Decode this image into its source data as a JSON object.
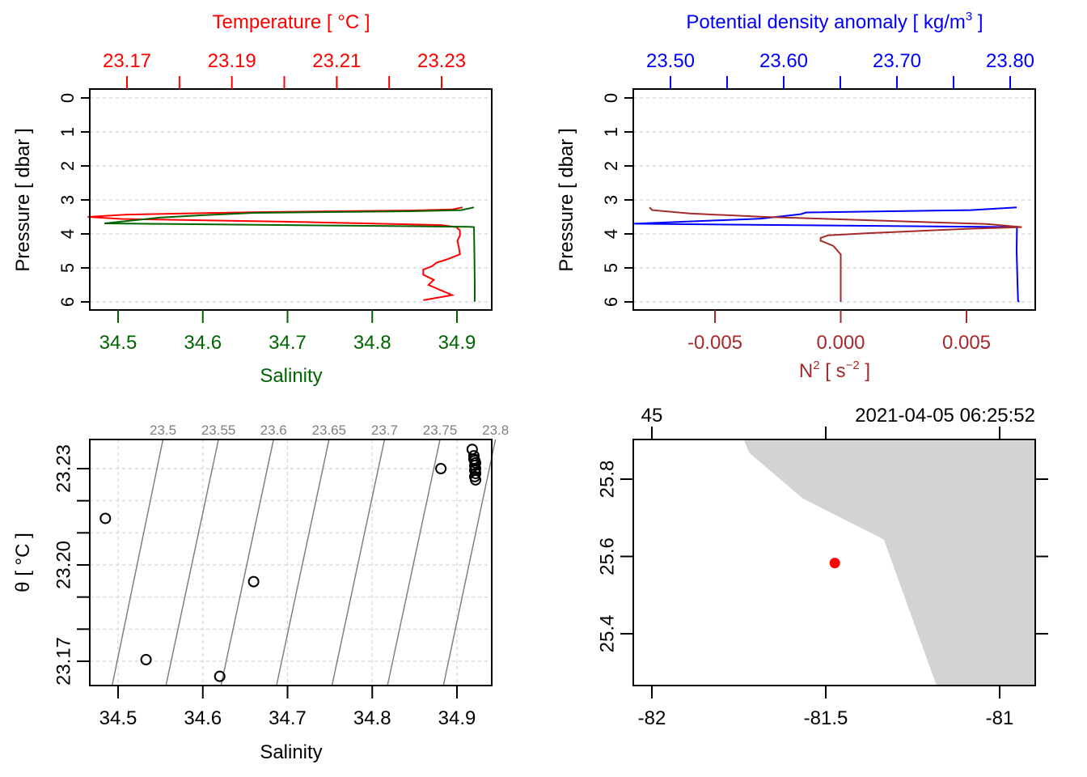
{
  "chart_data": [
    {
      "id": "ts_profile",
      "type": "line",
      "ylabel": "Pressure [ dbar ]",
      "ylim": [
        0,
        6
      ],
      "y_reversed": true,
      "yticks": [
        0,
        1,
        2,
        3,
        4,
        5,
        6
      ],
      "grid": "horizontal dashed",
      "top_axis": {
        "title": "Temperature [ °C ]",
        "color": "#ff0000",
        "ticks": [
          23.17,
          23.18,
          23.19,
          23.2,
          23.21,
          23.22,
          23.23
        ],
        "tick_labels": [
          "23.17",
          "23.19",
          "23.21",
          "23.23"
        ],
        "labeled_ticks": [
          23.17,
          23.19,
          23.21,
          23.23
        ]
      },
      "bottom_axis": {
        "title": "Salinity",
        "color": "#006400",
        "ticks": [
          34.5,
          34.6,
          34.7,
          34.8,
          34.9
        ],
        "tick_labels": [
          "34.5",
          "34.6",
          "34.7",
          "34.8",
          "34.9"
        ]
      },
      "series": [
        {
          "name": "Temperature",
          "color": "#ff0000",
          "axis": "top",
          "points": [
            [
              23.234,
              3.22
            ],
            [
              23.232,
              3.28
            ],
            [
              23.225,
              3.31
            ],
            [
              23.195,
              3.36
            ],
            [
              23.17,
              3.43
            ],
            [
              23.1625,
              3.5
            ],
            [
              23.169,
              3.56
            ],
            [
              23.2,
              3.64
            ],
            [
              23.23,
              3.74
            ],
            [
              23.2328,
              3.8
            ],
            [
              23.2335,
              3.9
            ],
            [
              23.2335,
              4.05
            ],
            [
              23.233,
              4.2
            ],
            [
              23.2333,
              4.4
            ],
            [
              23.2335,
              4.6
            ],
            [
              23.231,
              4.75
            ],
            [
              23.229,
              4.85
            ],
            [
              23.2282,
              4.95
            ],
            [
              23.2265,
              5.05
            ],
            [
              23.2265,
              5.2
            ],
            [
              23.2285,
              5.35
            ],
            [
              23.2275,
              5.5
            ],
            [
              23.232,
              5.8
            ],
            [
              23.2265,
              5.95
            ]
          ]
        },
        {
          "name": "Salinity",
          "color": "#006400",
          "axis": "bottom",
          "points": [
            [
              34.92,
              3.22
            ],
            [
              34.905,
              3.3
            ],
            [
              34.85,
              3.33
            ],
            [
              34.66,
              3.38
            ],
            [
              34.6,
              3.45
            ],
            [
              34.55,
              3.52
            ],
            [
              34.484,
              3.69
            ],
            [
              34.915,
              3.79
            ],
            [
              34.92,
              3.8
            ],
            [
              34.9205,
              4.5
            ],
            [
              34.921,
              5.5
            ],
            [
              34.921,
              5.99
            ]
          ]
        }
      ]
    },
    {
      "id": "density_profile",
      "type": "line",
      "ylabel": "Pressure [ dbar ]",
      "ylim": [
        0,
        6
      ],
      "y_reversed": true,
      "yticks": [
        0,
        1,
        2,
        3,
        4,
        5,
        6
      ],
      "grid": "horizontal dashed",
      "top_axis": {
        "title": "Potential density anomaly [ kg/m³ ]",
        "title_main": "Potential density anomaly [ kg/m",
        "title_sup": "3",
        "title_end": " ]",
        "color": "#0000ff",
        "ticks": [
          23.5,
          23.55,
          23.6,
          23.65,
          23.7,
          23.75,
          23.8
        ],
        "tick_labels": [
          "23.50",
          "23.60",
          "23.70",
          "23.80"
        ],
        "labeled_ticks": [
          23.5,
          23.6,
          23.7,
          23.8
        ]
      },
      "bottom_axis": {
        "title": "N² [ s⁻² ]",
        "title_main": "N",
        "title_sup": "2",
        "title_mid": " [ s",
        "title_sup2": "−2",
        "title_end": " ]",
        "color": "#a52a2a",
        "ticks": [
          -0.005,
          0.0,
          0.005
        ],
        "tick_labels": [
          "-0.005",
          "0.000",
          "0.005"
        ]
      },
      "series": [
        {
          "name": "Potential density anomaly",
          "color": "#0000ff",
          "axis": "top",
          "points": [
            [
              23.8057,
              3.22
            ],
            [
              23.765,
              3.3
            ],
            [
              23.62,
              3.37
            ],
            [
              23.615,
              3.42
            ],
            [
              23.58,
              3.55
            ],
            [
              23.468,
              3.7
            ],
            [
              23.806,
              3.8
            ],
            [
              23.8057,
              4.5
            ],
            [
              23.8065,
              5.5
            ],
            [
              23.807,
              5.97
            ],
            [
              23.808,
              6.0
            ]
          ]
        },
        {
          "name": "N2",
          "color": "#a52a2a",
          "axis": "bottom",
          "points": [
            [
              -0.0076,
              3.22
            ],
            [
              -0.0075,
              3.3
            ],
            [
              -0.006,
              3.4
            ],
            [
              -0.003,
              3.5
            ],
            [
              0.002,
              3.62
            ],
            [
              0.0058,
              3.71
            ],
            [
              0.0072,
              3.8
            ],
            [
              0.005,
              3.85
            ],
            [
              0.001,
              3.98
            ],
            [
              -0.0005,
              4.04
            ],
            [
              -0.0008,
              4.12
            ],
            [
              -0.0008,
              4.2
            ],
            [
              -0.0003,
              4.35
            ],
            [
              0.0,
              4.6
            ],
            [
              0.0,
              6.0
            ]
          ]
        }
      ]
    },
    {
      "id": "ts_diagram",
      "type": "scatter",
      "xlabel": "Salinity",
      "ylabel": "θ [ °C ]",
      "xlim": [
        34.466,
        34.94
      ],
      "ylim": [
        23.1625,
        23.2395
      ],
      "xticks": [
        34.5,
        34.6,
        34.7,
        34.8,
        34.9
      ],
      "xtick_labels": [
        "34.5",
        "34.6",
        "34.7",
        "34.8",
        "34.9"
      ],
      "yticks": [
        23.17,
        23.18,
        23.19,
        23.2,
        23.21,
        23.22,
        23.23
      ],
      "ytick_labels": [
        "23.17",
        "23.20",
        "23.23"
      ],
      "labeled_yticks": [
        23.17,
        23.2,
        23.23
      ],
      "grid": "dashed",
      "isopycnals": {
        "color": "#808080",
        "labels": [
          "23.5",
          "23.55",
          "23.6",
          "23.65",
          "23.7",
          "23.75",
          "23.8"
        ],
        "values": [
          23.5,
          23.55,
          23.6,
          23.65,
          23.7,
          23.75,
          23.8
        ],
        "bottom_salinity": [
          34.493,
          34.5565,
          34.6215,
          34.687,
          34.7525,
          34.818,
          34.884
        ],
        "top_salinity": [
          34.553,
          34.6185,
          34.6835,
          34.749,
          34.8145,
          34.88,
          34.9455
        ]
      },
      "points": [
        [
          34.485,
          23.2145
        ],
        [
          34.533,
          23.1705
        ],
        [
          34.62,
          23.1653
        ],
        [
          34.66,
          23.1948
        ],
        [
          34.881,
          23.23
        ],
        [
          34.918,
          23.236
        ],
        [
          34.92,
          23.234
        ],
        [
          34.921,
          23.2325
        ],
        [
          34.921,
          23.231
        ],
        [
          34.922,
          23.23
        ],
        [
          34.921,
          23.2295
        ],
        [
          34.922,
          23.2285
        ],
        [
          34.921,
          23.2275
        ],
        [
          34.922,
          23.2265
        ],
        [
          34.92,
          23.233
        ],
        [
          34.922,
          23.2318
        ]
      ]
    },
    {
      "id": "station_map",
      "type": "scatter",
      "xlim": [
        -82.055,
        -80.9
      ],
      "ylim": [
        25.262,
        25.9
      ],
      "xticks": [
        -82,
        -81.5,
        -81
      ],
      "xtick_labels": [
        "-82",
        "-81.5",
        "-81"
      ],
      "yticks": [
        25.4,
        25.6,
        25.8
      ],
      "ytick_labels": [
        "25.4",
        "25.6",
        "25.8"
      ],
      "top_labels": [
        "45",
        "2021-04-05 06:25:52"
      ],
      "land_color": "#d3d3d3",
      "land_polygon": [
        [
          -81.735,
          25.9
        ],
        [
          -81.72,
          25.868
        ],
        [
          -81.566,
          25.75
        ],
        [
          -81.333,
          25.644
        ],
        [
          -81.18,
          25.262
        ],
        [
          -80.9,
          25.262
        ],
        [
          -80.9,
          25.9
        ]
      ],
      "station": {
        "lon": -81.474,
        "lat": 25.583,
        "color": "#ff0000"
      }
    }
  ]
}
